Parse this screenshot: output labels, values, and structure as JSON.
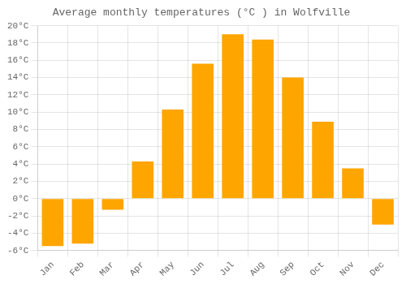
{
  "chart_data": {
    "type": "bar",
    "title": "Average monthly temperatures (°C ) in Wolfville",
    "categories": [
      "Jan",
      "Feb",
      "Mar",
      "Apr",
      "May",
      "Jun",
      "Jul",
      "Aug",
      "Sep",
      "Oct",
      "Nov",
      "Dec"
    ],
    "values": [
      -5.5,
      -5.2,
      -1.3,
      4.3,
      10.3,
      15.6,
      19.0,
      18.4,
      14.0,
      8.9,
      3.5,
      -3.0
    ],
    "color": "#FFA500",
    "ylim": [
      -6,
      20
    ],
    "yticks": [
      {
        "value": -6,
        "label": "-6°C"
      },
      {
        "value": -4,
        "label": "-4°C"
      },
      {
        "value": -2,
        "label": "-2°C"
      },
      {
        "value": 0,
        "label": "0°C"
      },
      {
        "value": 2,
        "label": "2°C"
      },
      {
        "value": 4,
        "label": "4°C"
      },
      {
        "value": 6,
        "label": "6°C"
      },
      {
        "value": 8,
        "label": "8°C"
      },
      {
        "value": 10,
        "label": "10°C"
      },
      {
        "value": 12,
        "label": "12°C"
      },
      {
        "value": 14,
        "label": "14°C"
      },
      {
        "value": 16,
        "label": "16°C"
      },
      {
        "value": 18,
        "label": "18°C"
      },
      {
        "value": 20,
        "label": "20°C"
      }
    ],
    "grid": true
  }
}
